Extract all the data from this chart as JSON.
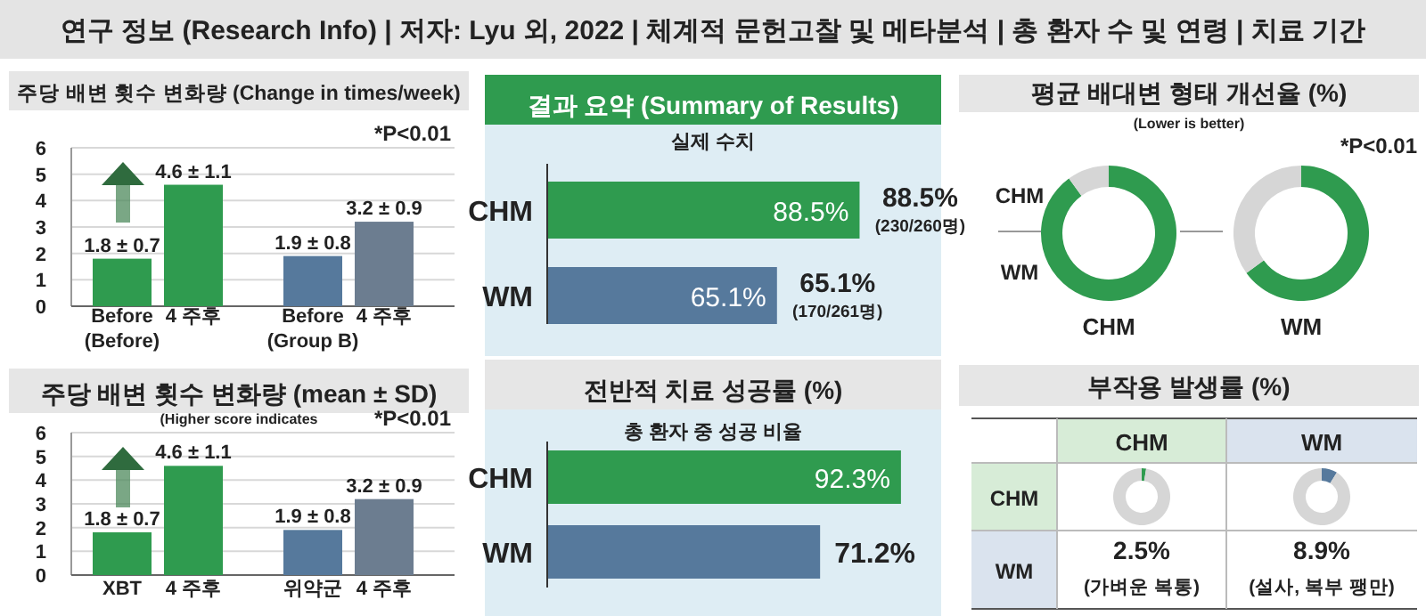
{
  "chart_data": [
    {
      "type": "other",
      "title": "연구 정보 (Research Info) | 저자: Lyu 외, 2022 | 체계적 문헌고찰 및 메타분석 | 총 환자 수 및 연령 | 치료 기간"
    },
    {
      "type": "bar",
      "title": "주당 배변 횟수 변화량 (Change in times/week)",
      "categories": [
        "Before\n(Before)",
        "4 주후",
        "Before\n(Group B)",
        "4 주후"
      ],
      "values": [
        1.8,
        4.6,
        1.9,
        3.2
      ],
      "colors": [
        "#2f9b4f",
        "#2f9b4f",
        "#56799c",
        "#6c7d90"
      ],
      "value_labels": [
        "1.8 ± 0.7",
        "4.6 ± 1.1",
        "1.9 ± 0.8",
        "3.2 ± 0.9"
      ],
      "ylim": [
        0,
        6
      ],
      "yticks": [
        0,
        1,
        2,
        3,
        4,
        5,
        6
      ],
      "grid": "y",
      "annotations": [
        "*P<0.01"
      ]
    },
    {
      "type": "bar",
      "title": "주당 배변 횟수 변화량 (mean ± SD)",
      "subtitle": "(Higher score indicates",
      "categories": [
        "XBT",
        "4 주후",
        "위약군",
        "4 주후"
      ],
      "values": [
        1.8,
        4.6,
        1.9,
        3.2
      ],
      "colors": [
        "#2f9b4f",
        "#2f9b4f",
        "#56799c",
        "#6c7d90"
      ],
      "value_labels": [
        "1.8 ± 0.7",
        "4.6 ± 1.1",
        "1.9 ± 0.8",
        "3.2 ± 0.9"
      ],
      "ylim": [
        0,
        6
      ],
      "yticks": [
        0,
        1,
        2,
        3,
        4,
        5,
        6
      ],
      "grid": "y",
      "annotations": [
        "*P<0.01"
      ]
    },
    {
      "type": "bar",
      "orientation": "horizontal",
      "title": "결과 요약 (Summary of Results)",
      "subtitle": "실제 수치",
      "categories": [
        "CHM",
        "WM"
      ],
      "values": [
        88.5,
        65.1
      ],
      "colors": [
        "#2f9b4f",
        "#56799c"
      ],
      "value_labels": [
        "88.5%",
        "65.1%"
      ],
      "annotations": [
        "88.5%",
        "(230/260명)",
        "65.1%",
        "(170/261명)"
      ]
    },
    {
      "type": "bar",
      "orientation": "horizontal",
      "title": "전반적 치료 성공률 (%)",
      "subtitle": "총 환자 중 성공 비율",
      "categories": [
        "CHM",
        "WM"
      ],
      "values": [
        92.3,
        71.2
      ],
      "colors": [
        "#2f9b4f",
        "#56799c"
      ],
      "value_labels": [
        "92.3%",
        "71.2%"
      ]
    },
    {
      "type": "donut",
      "title": "평균 배대변 형태 개선율 (%)",
      "subtitle": "(Lower is better)",
      "categories": [
        null,
        null
      ],
      "colors": [
        "#2f9b4f",
        "#d6d6d6"
      ],
      "series": [
        {
          "name": "CHM",
          "values": [
            90,
            10
          ]
        },
        {
          "name": "WM",
          "values": [
            65,
            35
          ]
        }
      ],
      "annotations": [
        "*P<0.01",
        "CHM",
        "WM"
      ]
    },
    {
      "type": "donut",
      "title": "부작용 발생률 (%)",
      "categories": [
        null,
        null
      ],
      "series": [
        {
          "name": "CHM",
          "values": [
            2.5,
            97.5
          ],
          "colors": [
            "#2f9b4f",
            "#d6d6d6"
          ]
        },
        {
          "name": "WM",
          "values": [
            8.9,
            91.1
          ],
          "colors": [
            "#56799c",
            "#d6d6d6"
          ]
        }
      ],
      "annotations": [
        "CHM",
        "WM",
        "2.5%",
        "8.9%",
        "(가벼운 복통)",
        "(설사, 복부 팽만)"
      ]
    }
  ]
}
